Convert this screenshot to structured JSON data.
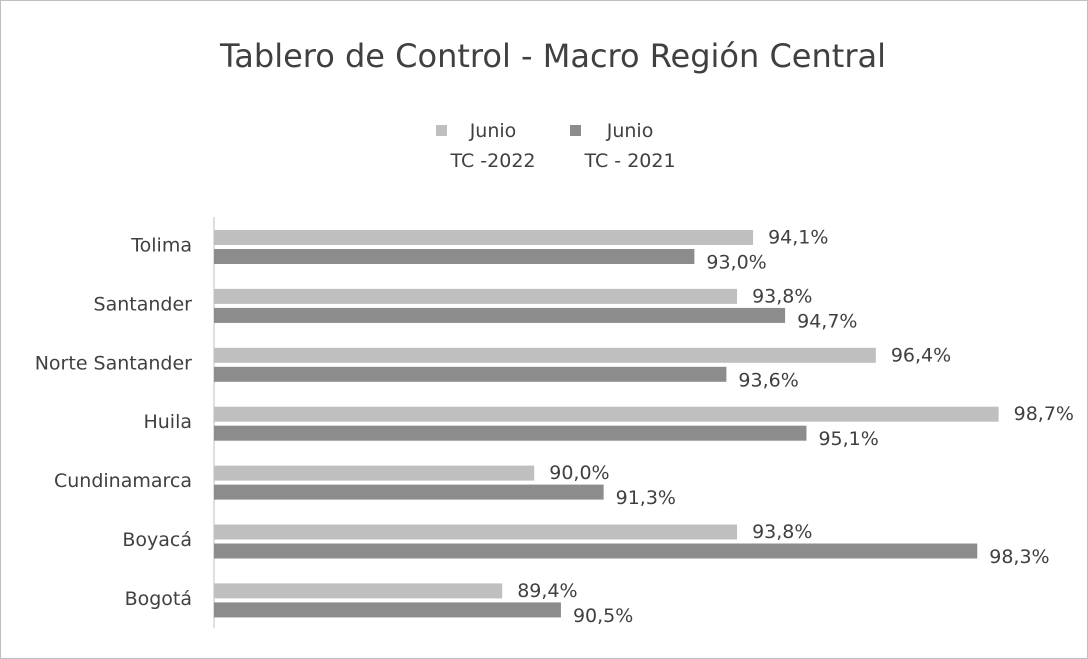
{
  "chart_data": {
    "type": "bar",
    "orientation": "horizontal",
    "title": "Tablero de Control - Macro Región Central",
    "categories": [
      "Tolima",
      "Santander",
      "Norte Santander",
      "Huila",
      "Cundinamarca",
      "Boyacá",
      "Bogotá"
    ],
    "series": [
      {
        "name": "Junio\nTC -2022",
        "color": "#bfbfbf",
        "values": [
          94.1,
          93.8,
          96.4,
          98.7,
          90.0,
          93.8,
          89.4
        ],
        "value_labels": [
          "94,1%",
          "93,8%",
          "96,4%",
          "98,7%",
          "90,0%",
          "93,8%",
          "89,4%"
        ]
      },
      {
        "name": "Junio\nTC - 2021",
        "color": "#8c8c8c",
        "values": [
          93.0,
          94.7,
          93.6,
          95.1,
          91.3,
          98.3,
          90.5
        ],
        "value_labels": [
          "93,0%",
          "94,7%",
          "93,6%",
          "95,1%",
          "91,3%",
          "98,3%",
          "90,5%"
        ]
      }
    ],
    "xlim": [
      84,
      100
    ]
  }
}
